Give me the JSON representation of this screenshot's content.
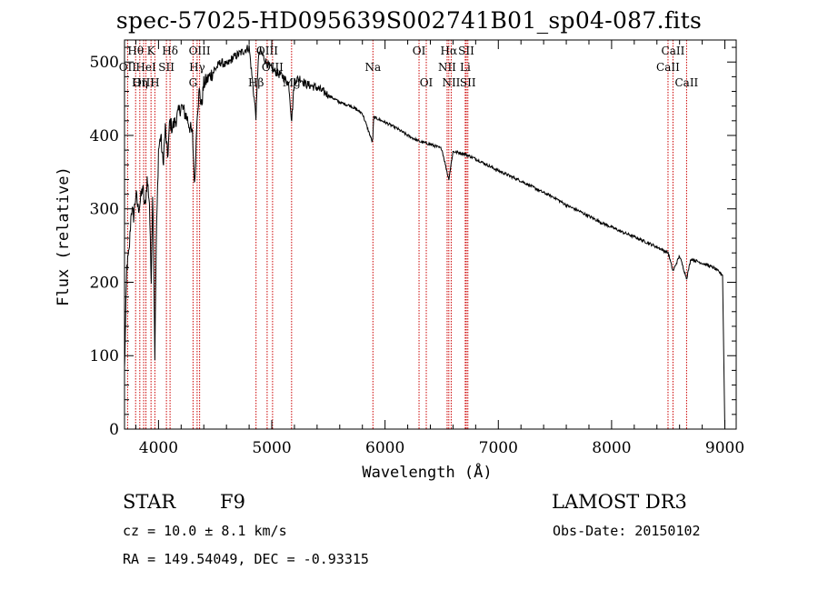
{
  "title": "spec-57025-HD095639S002741B01_sp04-087.fits",
  "chart_data": {
    "type": "line",
    "title": "spec-57025-HD095639S002741B01_sp04-087.fits",
    "xlabel": "Wavelength (Å)",
    "ylabel": "Flux (relative)",
    "xlim": [
      3700,
      9100
    ],
    "ylim": [
      0,
      530
    ],
    "xticks": [
      4000,
      5000,
      6000,
      7000,
      8000,
      9000
    ],
    "yticks": [
      0,
      100,
      200,
      300,
      400,
      500
    ],
    "xtick_labels": [
      "4000",
      "5000",
      "6000",
      "7000",
      "8000",
      "9000"
    ],
    "ytick_labels": [
      "0",
      "100",
      "200",
      "300",
      "400",
      "500"
    ],
    "series": [
      {
        "name": "spectrum",
        "x": [
          3700,
          3720,
          3740,
          3760,
          3780,
          3800,
          3820,
          3840,
          3860,
          3880,
          3900,
          3920,
          3935,
          3950,
          3968,
          3980,
          4000,
          4020,
          4040,
          4060,
          4080,
          4100,
          4120,
          4150,
          4200,
          4250,
          4300,
          4320,
          4340,
          4360,
          4380,
          4400,
          4450,
          4500,
          4550,
          4600,
          4650,
          4700,
          4750,
          4800,
          4861,
          4880,
          4900,
          4950,
          5000,
          5050,
          5100,
          5150,
          5175,
          5200,
          5250,
          5300,
          5400,
          5500,
          5600,
          5700,
          5800,
          5890,
          5900,
          6000,
          6100,
          6200,
          6300,
          6400,
          6500,
          6563,
          6600,
          6700,
          6800,
          6900,
          7000,
          7100,
          7200,
          7300,
          7400,
          7500,
          7600,
          7700,
          7800,
          7900,
          8000,
          8100,
          8200,
          8300,
          8400,
          8500,
          8542,
          8600,
          8662,
          8700,
          8800,
          8900,
          8980,
          9000
        ],
        "values": [
          80,
          220,
          240,
          300,
          290,
          320,
          300,
          310,
          330,
          300,
          340,
          310,
          200,
          330,
          100,
          250,
          380,
          400,
          360,
          410,
          370,
          420,
          410,
          420,
          440,
          425,
          400,
          330,
          430,
          460,
          440,
          470,
          480,
          490,
          500,
          495,
          505,
          510,
          515,
          520,
          425,
          505,
          515,
          500,
          490,
          485,
          480,
          470,
          420,
          475,
          478,
          470,
          465,
          455,
          445,
          440,
          430,
          390,
          425,
          418,
          410,
          400,
          392,
          388,
          382,
          340,
          378,
          375,
          368,
          360,
          352,
          345,
          338,
          330,
          322,
          315,
          305,
          298,
          290,
          282,
          275,
          268,
          262,
          255,
          248,
          240,
          215,
          236,
          205,
          232,
          226,
          220,
          210,
          0
        ]
      }
    ],
    "lines": [
      {
        "name": "Hθ",
        "wavelength": 3798,
        "row": 0
      },
      {
        "name": "OII",
        "wavelength": 3727,
        "row": 1
      },
      {
        "name": "OIII",
        "wavelength": 3869,
        "row": 2
      },
      {
        "name": "Hη",
        "wavelength": 3835,
        "row": 2
      },
      {
        "name": "K",
        "wavelength": 3934,
        "row": 0
      },
      {
        "name": "HeI",
        "wavelength": 3889,
        "row": 1
      },
      {
        "name": "SII",
        "wavelength": 4070,
        "row": 1
      },
      {
        "name": "H",
        "wavelength": 3968,
        "row": 2
      },
      {
        "name": "Hδ",
        "wavelength": 4102,
        "row": 0
      },
      {
        "name": "OIII",
        "wavelength": 4363,
        "row": 0
      },
      {
        "name": "Hγ",
        "wavelength": 4341,
        "row": 1
      },
      {
        "name": "G",
        "wavelength": 4305,
        "row": 2
      },
      {
        "name": "Hβ",
        "wavelength": 4861,
        "row": 2
      },
      {
        "name": "OIII",
        "wavelength": 4959,
        "row": 0
      },
      {
        "name": "OIII",
        "wavelength": 5007,
        "row": 1
      },
      {
        "name": "Mg",
        "wavelength": 5175,
        "row": 2
      },
      {
        "name": "Na",
        "wavelength": 5893,
        "row": 1
      },
      {
        "name": "OI",
        "wavelength": 6300,
        "row": 0
      },
      {
        "name": "OI",
        "wavelength": 6364,
        "row": 2
      },
      {
        "name": "Hα",
        "wavelength": 6563,
        "row": 0
      },
      {
        "name": "NII",
        "wavelength": 6548,
        "row": 1
      },
      {
        "name": "NII",
        "wavelength": 6584,
        "row": 2
      },
      {
        "name": "SII",
        "wavelength": 6717,
        "row": 0
      },
      {
        "name": "Li",
        "wavelength": 6708,
        "row": 1
      },
      {
        "name": "SII",
        "wavelength": 6731,
        "row": 2
      },
      {
        "name": "CaII",
        "wavelength": 8498,
        "row": 1
      },
      {
        "name": "CaII",
        "wavelength": 8542,
        "row": 0
      },
      {
        "name": "CaII",
        "wavelength": 8662,
        "row": 2
      }
    ]
  },
  "info": {
    "class": "STAR",
    "subclass": "F9",
    "survey": "LAMOST DR3",
    "cz": "cz = 10.0 ± 8.1 km/s",
    "obs_date": "Obs-Date: 20150102",
    "coords": "RA = 149.54049, DEC =  -0.93315"
  },
  "colors": {
    "spectrum": "#000000",
    "line_markers": "#cc0000"
  }
}
